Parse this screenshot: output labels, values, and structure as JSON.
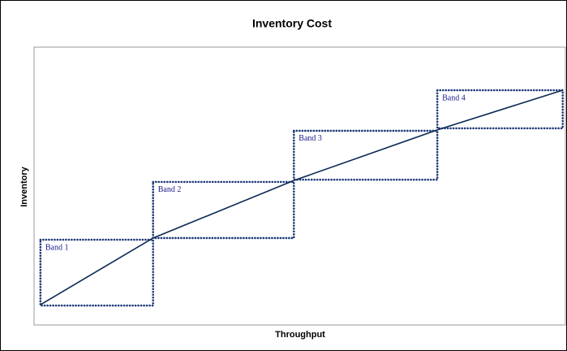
{
  "chart_data": {
    "type": "line",
    "title": "Inventory Cost",
    "x_label": "Throughput",
    "y_label": "Inventory",
    "xlim": [
      0,
      100
    ],
    "ylim": [
      0,
      100
    ],
    "series": [
      {
        "name": "Inventory",
        "color": "#0b2a55",
        "x": [
          1.2,
          22.4,
          48.9,
          75.9,
          99.5
        ],
        "values": [
          7.3,
          31.3,
          52.0,
          70.2,
          84.5
        ]
      }
    ],
    "bands": [
      {
        "label": "Band 1",
        "x": [
          1.2,
          22.4
        ],
        "y": [
          7.0,
          30.7
        ]
      },
      {
        "label": "Band 2",
        "x": [
          22.4,
          48.9
        ],
        "y": [
          31.3,
          51.5
        ]
      },
      {
        "label": "Band 3",
        "x": [
          48.9,
          75.9
        ],
        "y": [
          52.3,
          69.9
        ]
      },
      {
        "label": "Band 4",
        "x": [
          75.9,
          99.5
        ],
        "y": [
          70.8,
          84.5
        ]
      }
    ],
    "band_color": "#1f3a7a"
  }
}
